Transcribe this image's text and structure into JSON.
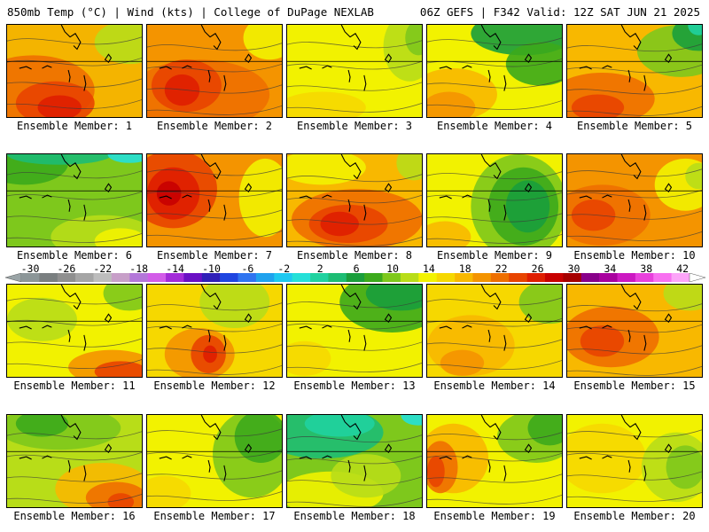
{
  "header": {
    "left": "850mb Temp (°C) | Wind (kts) | College of DuPage NEXLAB",
    "right": "06Z GEFS | F342 Valid: 12Z SAT JUN 21 2025"
  },
  "colorbar": {
    "labels": [
      "-30",
      "-26",
      "-22",
      "-18",
      "-14",
      "-10",
      "-6",
      "-2",
      "2",
      "6",
      "10",
      "14",
      "18",
      "22",
      "26",
      "30",
      "34",
      "38",
      "42"
    ],
    "colors": [
      "#8c9698",
      "#7a7f80",
      "#8f8f8f",
      "#a5a5a5",
      "#bdbdbd",
      "#c79fc8",
      "#b377d9",
      "#d25ce8",
      "#a32bd8",
      "#6a10c4",
      "#3020b8",
      "#1f45e0",
      "#2f74f0",
      "#1fa2ee",
      "#1ec8f0",
      "#25e0d8",
      "#20d2a0",
      "#1dbd74",
      "#1a9e3c",
      "#3caa1c",
      "#7ec81c",
      "#b8dd18",
      "#f2f200",
      "#f6d800",
      "#f8b800",
      "#f49400",
      "#ee6f00",
      "#e84400",
      "#df1e00",
      "#c80000",
      "#a60000",
      "#88008a",
      "#a8009e",
      "#cc18c2",
      "#e840dc",
      "#f870f0",
      "#fca4f8"
    ]
  },
  "panels": [
    {
      "label": "Ensemble Member: 1",
      "base": "#f4b400",
      "blobs": [
        [
          "#ee6f00",
          30,
          75,
          70,
          40
        ],
        [
          "#e84400",
          55,
          90,
          45,
          25
        ],
        [
          "#df1e00",
          60,
          95,
          25,
          14
        ],
        [
          "#b8dd18",
          140,
          20,
          40,
          25
        ]
      ]
    },
    {
      "label": "Ensemble Member: 2",
      "base": "#f49400",
      "blobs": [
        [
          "#ee6f00",
          60,
          80,
          80,
          40
        ],
        [
          "#e84400",
          45,
          70,
          40,
          30
        ],
        [
          "#df1e00",
          40,
          75,
          20,
          18
        ],
        [
          "#f2f200",
          140,
          15,
          30,
          25
        ]
      ]
    },
    {
      "label": "Ensemble Member: 3",
      "base": "#f2f200",
      "blobs": [
        [
          "#b8dd18",
          140,
          25,
          30,
          40
        ],
        [
          "#7ec81c",
          150,
          15,
          15,
          20
        ],
        [
          "#f6d800",
          40,
          95,
          50,
          18
        ]
      ]
    },
    {
      "label": "Ensemble Member: 4",
      "base": "#f2f200",
      "blobs": [
        [
          "#f8b800",
          30,
          80,
          50,
          30
        ],
        [
          "#f49400",
          25,
          95,
          30,
          18
        ],
        [
          "#1a9e3c",
          110,
          10,
          60,
          25
        ],
        [
          "#3caa1c",
          130,
          45,
          40,
          25
        ]
      ]
    },
    {
      "label": "Ensemble Member: 5",
      "base": "#f8b800",
      "blobs": [
        [
          "#ee6f00",
          40,
          85,
          60,
          30
        ],
        [
          "#e84400",
          35,
          95,
          30,
          15
        ],
        [
          "#7ec81c",
          130,
          30,
          50,
          30
        ],
        [
          "#1a9e3c",
          150,
          10,
          30,
          20
        ],
        [
          "#20d2a0",
          150,
          0,
          12,
          12
        ]
      ]
    },
    {
      "label": "Ensemble Member: 6",
      "base": "#7ec81c",
      "blobs": [
        [
          "#3caa1c",
          20,
          10,
          50,
          25
        ],
        [
          "#1dbd74",
          60,
          0,
          60,
          12
        ],
        [
          "#25e0d8",
          140,
          0,
          25,
          10
        ],
        [
          "#b8dd18",
          110,
          95,
          60,
          25
        ],
        [
          "#f2f200",
          130,
          100,
          30,
          15
        ]
      ]
    },
    {
      "label": "Ensemble Member: 7",
      "base": "#f49400",
      "blobs": [
        [
          "#e84400",
          30,
          40,
          50,
          45
        ],
        [
          "#df1e00",
          30,
          45,
          30,
          30
        ],
        [
          "#c80000",
          25,
          45,
          14,
          14
        ],
        [
          "#f2f200",
          135,
          50,
          30,
          45
        ]
      ]
    },
    {
      "label": "Ensemble Member: 8",
      "base": "#f8b800",
      "blobs": [
        [
          "#f2f200",
          40,
          15,
          50,
          20
        ],
        [
          "#ee6f00",
          80,
          75,
          75,
          35
        ],
        [
          "#e84400",
          70,
          80,
          45,
          22
        ],
        [
          "#df1e00",
          60,
          80,
          22,
          14
        ],
        [
          "#b8dd18",
          145,
          10,
          20,
          20
        ]
      ]
    },
    {
      "label": "Ensemble Member: 9",
      "base": "#f2f200",
      "blobs": [
        [
          "#7ec81c",
          105,
          60,
          55,
          60
        ],
        [
          "#3caa1c",
          110,
          60,
          40,
          45
        ],
        [
          "#1a9e3c",
          115,
          60,
          25,
          30
        ],
        [
          "#f8b800",
          20,
          95,
          30,
          18
        ]
      ]
    },
    {
      "label": "Ensemble Member: 10",
      "base": "#f49400",
      "blobs": [
        [
          "#ee6f00",
          40,
          70,
          55,
          35
        ],
        [
          "#e84400",
          30,
          70,
          25,
          18
        ],
        [
          "#f2f200",
          135,
          35,
          35,
          30
        ],
        [
          "#b8dd18",
          150,
          25,
          15,
          15
        ]
      ]
    },
    {
      "label": "Ensemble Member: 11",
      "base": "#f2f200",
      "blobs": [
        [
          "#b8dd18",
          40,
          40,
          40,
          25
        ],
        [
          "#7ec81c",
          140,
          10,
          30,
          20
        ],
        [
          "#f49400",
          120,
          95,
          50,
          20
        ],
        [
          "#e84400",
          130,
          100,
          30,
          12
        ]
      ]
    },
    {
      "label": "Ensemble Member: 12",
      "base": "#f6d800",
      "blobs": [
        [
          "#b8dd18",
          100,
          20,
          40,
          30
        ],
        [
          "#f49400",
          60,
          80,
          40,
          30
        ],
        [
          "#e84400",
          70,
          80,
          20,
          22
        ],
        [
          "#df1e00",
          72,
          80,
          8,
          10
        ]
      ]
    },
    {
      "label": "Ensemble Member: 13",
      "base": "#f2f200",
      "blobs": [
        [
          "#3caa1c",
          120,
          20,
          60,
          35
        ],
        [
          "#1a9e3c",
          130,
          10,
          40,
          20
        ],
        [
          "#f6d800",
          20,
          85,
          30,
          20
        ]
      ]
    },
    {
      "label": "Ensemble Member: 14",
      "base": "#f6d800",
      "blobs": [
        [
          "#f8b800",
          50,
          70,
          50,
          35
        ],
        [
          "#f49400",
          40,
          90,
          25,
          15
        ],
        [
          "#7ec81c",
          140,
          20,
          35,
          25
        ]
      ]
    },
    {
      "label": "Ensemble Member: 15",
      "base": "#f8b800",
      "blobs": [
        [
          "#ee6f00",
          50,
          60,
          55,
          35
        ],
        [
          "#e84400",
          40,
          65,
          25,
          18
        ],
        [
          "#b8dd18",
          140,
          10,
          30,
          20
        ]
      ]
    },
    {
      "label": "Ensemble Member: 16",
      "base": "#b8dd18",
      "blobs": [
        [
          "#7ec81c",
          60,
          15,
          70,
          25
        ],
        [
          "#3caa1c",
          40,
          10,
          30,
          15
        ],
        [
          "#f8b800",
          110,
          85,
          55,
          30
        ],
        [
          "#ee6f00",
          125,
          95,
          35,
          18
        ],
        [
          "#e84400",
          130,
          100,
          15,
          10
        ]
      ]
    },
    {
      "label": "Ensemble Member: 17",
      "base": "#f2f200",
      "blobs": [
        [
          "#7ec81c",
          120,
          45,
          45,
          50
        ],
        [
          "#3caa1c",
          130,
          25,
          30,
          30
        ],
        [
          "#f6d800",
          20,
          90,
          30,
          20
        ]
      ]
    },
    {
      "label": "Ensemble Member: 18",
      "base": "#7ec81c",
      "blobs": [
        [
          "#1dbd74",
          40,
          20,
          70,
          30
        ],
        [
          "#20d2a0",
          60,
          10,
          40,
          15
        ],
        [
          "#25e0d8",
          150,
          0,
          20,
          12
        ],
        [
          "#f2f200",
          50,
          90,
          60,
          25
        ],
        [
          "#b8dd18",
          90,
          70,
          40,
          25
        ]
      ]
    },
    {
      "label": "Ensemble Member: 19",
      "base": "#f2f200",
      "blobs": [
        [
          "#f8b800",
          30,
          50,
          40,
          40
        ],
        [
          "#ee6f00",
          15,
          60,
          20,
          30
        ],
        [
          "#e84400",
          10,
          65,
          10,
          18
        ],
        [
          "#7ec81c",
          125,
          25,
          45,
          30
        ],
        [
          "#3caa1c",
          140,
          15,
          25,
          20
        ]
      ]
    },
    {
      "label": "Ensemble Member: 20",
      "base": "#f2f200",
      "blobs": [
        [
          "#f6d800",
          40,
          50,
          50,
          40
        ],
        [
          "#b8dd18",
          125,
          60,
          40,
          40
        ],
        [
          "#7ec81c",
          135,
          60,
          22,
          25
        ]
      ]
    }
  ]
}
